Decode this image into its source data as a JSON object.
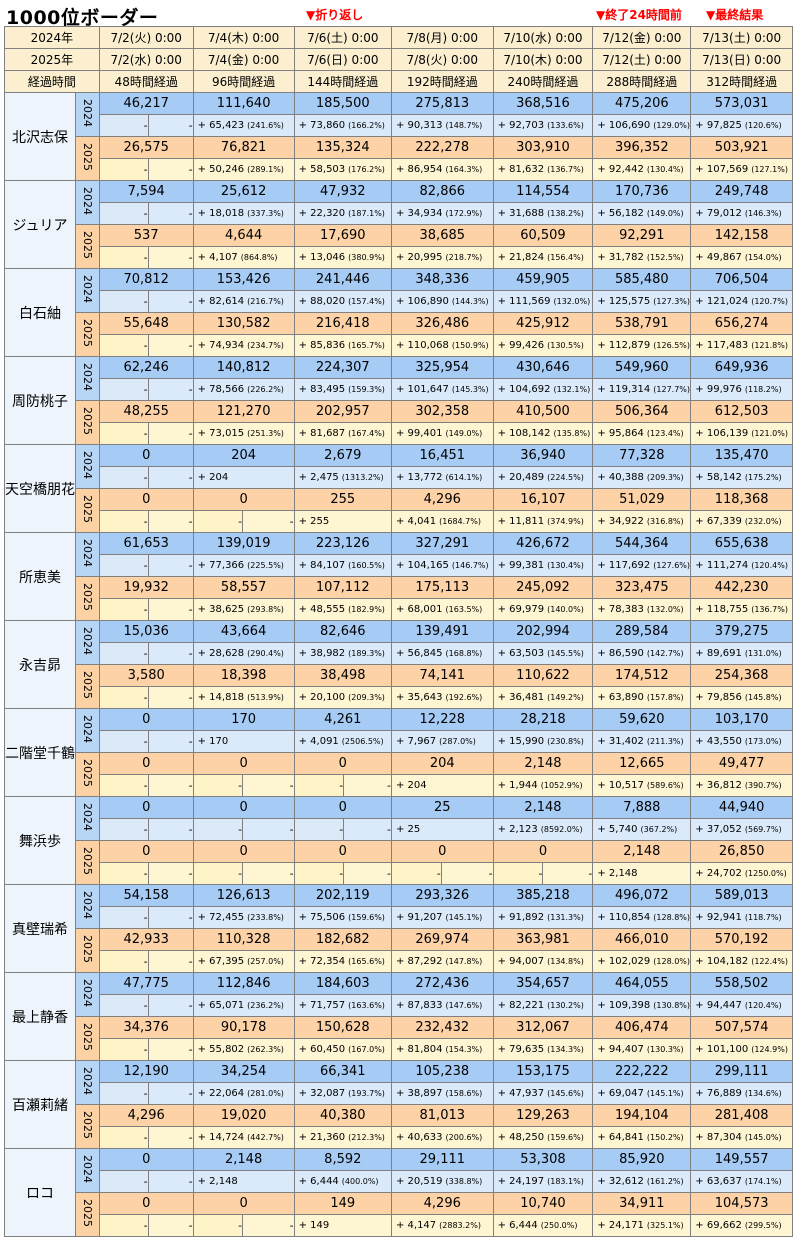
{
  "title": "1000位ボーダー",
  "notes": {
    "turnaround": "▼折り返し",
    "before_end": "▼終了24時間前",
    "final": "▼最終結果"
  },
  "header": {
    "row_2024_label": "2024年",
    "row_2025_label": "2025年",
    "row_elapsed_label": "経過時間",
    "dates_2024": [
      "7/2(火) 0:00",
      "7/4(木) 0:00",
      "7/6(土) 0:00",
      "7/8(月) 0:00",
      "7/10(水) 0:00",
      "7/12(金) 0:00",
      "7/13(土) 0:00"
    ],
    "dates_2025": [
      "7/2(水) 0:00",
      "7/4(金) 0:00",
      "7/6(日) 0:00",
      "7/8(火) 0:00",
      "7/10(木) 0:00",
      "7/12(土) 0:00",
      "7/13(日) 0:00"
    ],
    "elapsed": [
      "48時間経過",
      "96時間経過",
      "144時間経過",
      "192時間経過",
      "240時間経過",
      "288時間経過",
      "312時間経過"
    ]
  },
  "year_labels": [
    "2024",
    "2025"
  ],
  "dash": "-",
  "characters": [
    {
      "name": "北沢志保",
      "y2024": {
        "values": [
          "46,217",
          "111,640",
          "185,500",
          "275,813",
          "368,516",
          "475,206",
          "573,031"
        ],
        "deltas": [
          [
            "+ 65,423",
            "(241.6%)"
          ],
          [
            "+ 73,860",
            "(166.2%)"
          ],
          [
            "+ 90,313",
            "(148.7%)"
          ],
          [
            "+ 92,703",
            "(133.6%)"
          ],
          [
            "+ 106,690",
            "(129.0%)"
          ],
          [
            "+ 97,825",
            "(120.6%)"
          ]
        ]
      },
      "y2025": {
        "values": [
          "26,575",
          "76,821",
          "135,324",
          "222,278",
          "303,910",
          "396,352",
          "503,921"
        ],
        "deltas": [
          [
            "+ 50,246",
            "(289.1%)"
          ],
          [
            "+ 58,503",
            "(176.2%)"
          ],
          [
            "+ 86,954",
            "(164.3%)"
          ],
          [
            "+ 81,632",
            "(136.7%)"
          ],
          [
            "+ 92,442",
            "(130.4%)"
          ],
          [
            "+ 107,569",
            "(127.1%)"
          ]
        ]
      }
    },
    {
      "name": "ジュリア",
      "y2024": {
        "values": [
          "7,594",
          "25,612",
          "47,932",
          "82,866",
          "114,554",
          "170,736",
          "249,748"
        ],
        "deltas": [
          [
            "+ 18,018",
            "(337.3%)"
          ],
          [
            "+ 22,320",
            "(187.1%)"
          ],
          [
            "+ 34,934",
            "(172.9%)"
          ],
          [
            "+ 31,688",
            "(138.2%)"
          ],
          [
            "+ 56,182",
            "(149.0%)"
          ],
          [
            "+ 79,012",
            "(146.3%)"
          ]
        ]
      },
      "y2025": {
        "values": [
          "537",
          "4,644",
          "17,690",
          "38,685",
          "60,509",
          "92,291",
          "142,158"
        ],
        "deltas": [
          [
            "+ 4,107",
            "(864.8%)"
          ],
          [
            "+ 13,046",
            "(380.9%)"
          ],
          [
            "+ 20,995",
            "(218.7%)"
          ],
          [
            "+ 21,824",
            "(156.4%)"
          ],
          [
            "+ 31,782",
            "(152.5%)"
          ],
          [
            "+ 49,867",
            "(154.0%)"
          ]
        ]
      }
    },
    {
      "name": "白石紬",
      "y2024": {
        "values": [
          "70,812",
          "153,426",
          "241,446",
          "348,336",
          "459,905",
          "585,480",
          "706,504"
        ],
        "deltas": [
          [
            "+ 82,614",
            "(216.7%)"
          ],
          [
            "+ 88,020",
            "(157.4%)"
          ],
          [
            "+ 106,890",
            "(144.3%)"
          ],
          [
            "+ 111,569",
            "(132.0%)"
          ],
          [
            "+ 125,575",
            "(127.3%)"
          ],
          [
            "+ 121,024",
            "(120.7%)"
          ]
        ]
      },
      "y2025": {
        "values": [
          "55,648",
          "130,582",
          "216,418",
          "326,486",
          "425,912",
          "538,791",
          "656,274"
        ],
        "deltas": [
          [
            "+ 74,934",
            "(234.7%)"
          ],
          [
            "+ 85,836",
            "(165.7%)"
          ],
          [
            "+ 110,068",
            "(150.9%)"
          ],
          [
            "+ 99,426",
            "(130.5%)"
          ],
          [
            "+ 112,879",
            "(126.5%)"
          ],
          [
            "+ 117,483",
            "(121.8%)"
          ]
        ]
      }
    },
    {
      "name": "周防桃子",
      "y2024": {
        "values": [
          "62,246",
          "140,812",
          "224,307",
          "325,954",
          "430,646",
          "549,960",
          "649,936"
        ],
        "deltas": [
          [
            "+ 78,566",
            "(226.2%)"
          ],
          [
            "+ 83,495",
            "(159.3%)"
          ],
          [
            "+ 101,647",
            "(145.3%)"
          ],
          [
            "+ 104,692",
            "(132.1%)"
          ],
          [
            "+ 119,314",
            "(127.7%)"
          ],
          [
            "+ 99,976",
            "(118.2%)"
          ]
        ]
      },
      "y2025": {
        "values": [
          "48,255",
          "121,270",
          "202,957",
          "302,358",
          "410,500",
          "506,364",
          "612,503"
        ],
        "deltas": [
          [
            "+ 73,015",
            "(251.3%)"
          ],
          [
            "+ 81,687",
            "(167.4%)"
          ],
          [
            "+ 99,401",
            "(149.0%)"
          ],
          [
            "+ 108,142",
            "(135.8%)"
          ],
          [
            "+ 95,864",
            "(123.4%)"
          ],
          [
            "+ 106,139",
            "(121.0%)"
          ]
        ]
      }
    },
    {
      "name": "天空橋朋花",
      "y2024": {
        "values": [
          "0",
          "204",
          "2,679",
          "16,451",
          "36,940",
          "77,328",
          "135,470"
        ],
        "deltas": [
          [
            "+ 204",
            ""
          ],
          [
            "+ 2,475",
            "(1313.2%)"
          ],
          [
            "+ 13,772",
            "(614.1%)"
          ],
          [
            "+ 20,489",
            "(224.5%)"
          ],
          [
            "+ 40,388",
            "(209.3%)"
          ],
          [
            "+ 58,142",
            "(175.2%)"
          ]
        ]
      },
      "y2025": {
        "values": [
          "0",
          "0",
          "255",
          "4,296",
          "16,107",
          "51,029",
          "118,368"
        ],
        "deltas": [
          [
            "-",
            ""
          ],
          [
            "+ 255",
            ""
          ],
          [
            "+ 4,041",
            "(1684.7%)"
          ],
          [
            "+ 11,811",
            "(374.9%)"
          ],
          [
            "+ 34,922",
            "(316.8%)"
          ],
          [
            "+ 67,339",
            "(232.0%)"
          ]
        ]
      }
    },
    {
      "name": "所恵美",
      "y2024": {
        "values": [
          "61,653",
          "139,019",
          "223,126",
          "327,291",
          "426,672",
          "544,364",
          "655,638"
        ],
        "deltas": [
          [
            "+ 77,366",
            "(225.5%)"
          ],
          [
            "+ 84,107",
            "(160.5%)"
          ],
          [
            "+ 104,165",
            "(146.7%)"
          ],
          [
            "+ 99,381",
            "(130.4%)"
          ],
          [
            "+ 117,692",
            "(127.6%)"
          ],
          [
            "+ 111,274",
            "(120.4%)"
          ]
        ]
      },
      "y2025": {
        "values": [
          "19,932",
          "58,557",
          "107,112",
          "175,113",
          "245,092",
          "323,475",
          "442,230"
        ],
        "deltas": [
          [
            "+ 38,625",
            "(293.8%)"
          ],
          [
            "+ 48,555",
            "(182.9%)"
          ],
          [
            "+ 68,001",
            "(163.5%)"
          ],
          [
            "+ 69,979",
            "(140.0%)"
          ],
          [
            "+ 78,383",
            "(132.0%)"
          ],
          [
            "+ 118,755",
            "(136.7%)"
          ]
        ]
      }
    },
    {
      "name": "永吉昴",
      "y2024": {
        "values": [
          "15,036",
          "43,664",
          "82,646",
          "139,491",
          "202,994",
          "289,584",
          "379,275"
        ],
        "deltas": [
          [
            "+ 28,628",
            "(290.4%)"
          ],
          [
            "+ 38,982",
            "(189.3%)"
          ],
          [
            "+ 56,845",
            "(168.8%)"
          ],
          [
            "+ 63,503",
            "(145.5%)"
          ],
          [
            "+ 86,590",
            "(142.7%)"
          ],
          [
            "+ 89,691",
            "(131.0%)"
          ]
        ]
      },
      "y2025": {
        "values": [
          "3,580",
          "18,398",
          "38,498",
          "74,141",
          "110,622",
          "174,512",
          "254,368"
        ],
        "deltas": [
          [
            "+ 14,818",
            "(513.9%)"
          ],
          [
            "+ 20,100",
            "(209.3%)"
          ],
          [
            "+ 35,643",
            "(192.6%)"
          ],
          [
            "+ 36,481",
            "(149.2%)"
          ],
          [
            "+ 63,890",
            "(157.8%)"
          ],
          [
            "+ 79,856",
            "(145.8%)"
          ]
        ]
      }
    },
    {
      "name": "二階堂千鶴",
      "y2024": {
        "values": [
          "0",
          "170",
          "4,261",
          "12,228",
          "28,218",
          "59,620",
          "103,170"
        ],
        "deltas": [
          [
            "+ 170",
            ""
          ],
          [
            "+ 4,091",
            "(2506.5%)"
          ],
          [
            "+ 7,967",
            "(287.0%)"
          ],
          [
            "+ 15,990",
            "(230.8%)"
          ],
          [
            "+ 31,402",
            "(211.3%)"
          ],
          [
            "+ 43,550",
            "(173.0%)"
          ]
        ]
      },
      "y2025": {
        "values": [
          "0",
          "0",
          "0",
          "204",
          "2,148",
          "12,665",
          "49,477"
        ],
        "deltas": [
          [
            "-",
            ""
          ],
          [
            "-",
            ""
          ],
          [
            "+ 204",
            ""
          ],
          [
            "+ 1,944",
            "(1052.9%)"
          ],
          [
            "+ 10,517",
            "(589.6%)"
          ],
          [
            "+ 36,812",
            "(390.7%)"
          ]
        ]
      }
    },
    {
      "name": "舞浜歩",
      "y2024": {
        "values": [
          "0",
          "0",
          "0",
          "25",
          "2,148",
          "7,888",
          "44,940"
        ],
        "deltas": [
          [
            "-",
            ""
          ],
          [
            "-",
            ""
          ],
          [
            "+ 25",
            ""
          ],
          [
            "+ 2,123",
            "(8592.0%)"
          ],
          [
            "+ 5,740",
            "(367.2%)"
          ],
          [
            "+ 37,052",
            "(569.7%)"
          ]
        ]
      },
      "y2025": {
        "values": [
          "0",
          "0",
          "0",
          "0",
          "0",
          "2,148",
          "26,850"
        ],
        "deltas": [
          [
            "-",
            ""
          ],
          [
            "-",
            ""
          ],
          [
            "-",
            ""
          ],
          [
            "-",
            ""
          ],
          [
            "+ 2,148",
            ""
          ],
          [
            "+ 24,702",
            "(1250.0%)"
          ]
        ]
      }
    },
    {
      "name": "真壁瑞希",
      "y2024": {
        "values": [
          "54,158",
          "126,613",
          "202,119",
          "293,326",
          "385,218",
          "496,072",
          "589,013"
        ],
        "deltas": [
          [
            "+ 72,455",
            "(233.8%)"
          ],
          [
            "+ 75,506",
            "(159.6%)"
          ],
          [
            "+ 91,207",
            "(145.1%)"
          ],
          [
            "+ 91,892",
            "(131.3%)"
          ],
          [
            "+ 110,854",
            "(128.8%)"
          ],
          [
            "+ 92,941",
            "(118.7%)"
          ]
        ]
      },
      "y2025": {
        "values": [
          "42,933",
          "110,328",
          "182,682",
          "269,974",
          "363,981",
          "466,010",
          "570,192"
        ],
        "deltas": [
          [
            "+ 67,395",
            "(257.0%)"
          ],
          [
            "+ 72,354",
            "(165.6%)"
          ],
          [
            "+ 87,292",
            "(147.8%)"
          ],
          [
            "+ 94,007",
            "(134.8%)"
          ],
          [
            "+ 102,029",
            "(128.0%)"
          ],
          [
            "+ 104,182",
            "(122.4%)"
          ]
        ]
      }
    },
    {
      "name": "最上静香",
      "y2024": {
        "values": [
          "47,775",
          "112,846",
          "184,603",
          "272,436",
          "354,657",
          "464,055",
          "558,502"
        ],
        "deltas": [
          [
            "+ 65,071",
            "(236.2%)"
          ],
          [
            "+ 71,757",
            "(163.6%)"
          ],
          [
            "+ 87,833",
            "(147.6%)"
          ],
          [
            "+ 82,221",
            "(130.2%)"
          ],
          [
            "+ 109,398",
            "(130.8%)"
          ],
          [
            "+ 94,447",
            "(120.4%)"
          ]
        ]
      },
      "y2025": {
        "values": [
          "34,376",
          "90,178",
          "150,628",
          "232,432",
          "312,067",
          "406,474",
          "507,574"
        ],
        "deltas": [
          [
            "+ 55,802",
            "(262.3%)"
          ],
          [
            "+ 60,450",
            "(167.0%)"
          ],
          [
            "+ 81,804",
            "(154.3%)"
          ],
          [
            "+ 79,635",
            "(134.3%)"
          ],
          [
            "+ 94,407",
            "(130.3%)"
          ],
          [
            "+ 101,100",
            "(124.9%)"
          ]
        ]
      }
    },
    {
      "name": "百瀬莉緒",
      "y2024": {
        "values": [
          "12,190",
          "34,254",
          "66,341",
          "105,238",
          "153,175",
          "222,222",
          "299,111"
        ],
        "deltas": [
          [
            "+ 22,064",
            "(281.0%)"
          ],
          [
            "+ 32,087",
            "(193.7%)"
          ],
          [
            "+ 38,897",
            "(158.6%)"
          ],
          [
            "+ 47,937",
            "(145.6%)"
          ],
          [
            "+ 69,047",
            "(145.1%)"
          ],
          [
            "+ 76,889",
            "(134.6%)"
          ]
        ]
      },
      "y2025": {
        "values": [
          "4,296",
          "19,020",
          "40,380",
          "81,013",
          "129,263",
          "194,104",
          "281,408"
        ],
        "deltas": [
          [
            "+ 14,724",
            "(442.7%)"
          ],
          [
            "+ 21,360",
            "(212.3%)"
          ],
          [
            "+ 40,633",
            "(200.6%)"
          ],
          [
            "+ 48,250",
            "(159.6%)"
          ],
          [
            "+ 64,841",
            "(150.2%)"
          ],
          [
            "+ 87,304",
            "(145.0%)"
          ]
        ]
      }
    },
    {
      "name": "ロコ",
      "y2024": {
        "values": [
          "0",
          "2,148",
          "8,592",
          "29,111",
          "53,308",
          "85,920",
          "149,557"
        ],
        "deltas": [
          [
            "+ 2,148",
            ""
          ],
          [
            "+ 6,444",
            "(400.0%)"
          ],
          [
            "+ 20,519",
            "(338.8%)"
          ],
          [
            "+ 24,197",
            "(183.1%)"
          ],
          [
            "+ 32,612",
            "(161.2%)"
          ],
          [
            "+ 63,637",
            "(174.1%)"
          ]
        ]
      },
      "y2025": {
        "values": [
          "0",
          "0",
          "149",
          "4,296",
          "10,740",
          "34,911",
          "104,573"
        ],
        "deltas": [
          [
            "-",
            ""
          ],
          [
            "+ 149",
            ""
          ],
          [
            "+ 4,147",
            "(2883.2%)"
          ],
          [
            "+ 6,444",
            "(250.0%)"
          ],
          [
            "+ 24,171",
            "(325.1%)"
          ],
          [
            "+ 69,662",
            "(299.5%)"
          ]
        ]
      }
    }
  ]
}
